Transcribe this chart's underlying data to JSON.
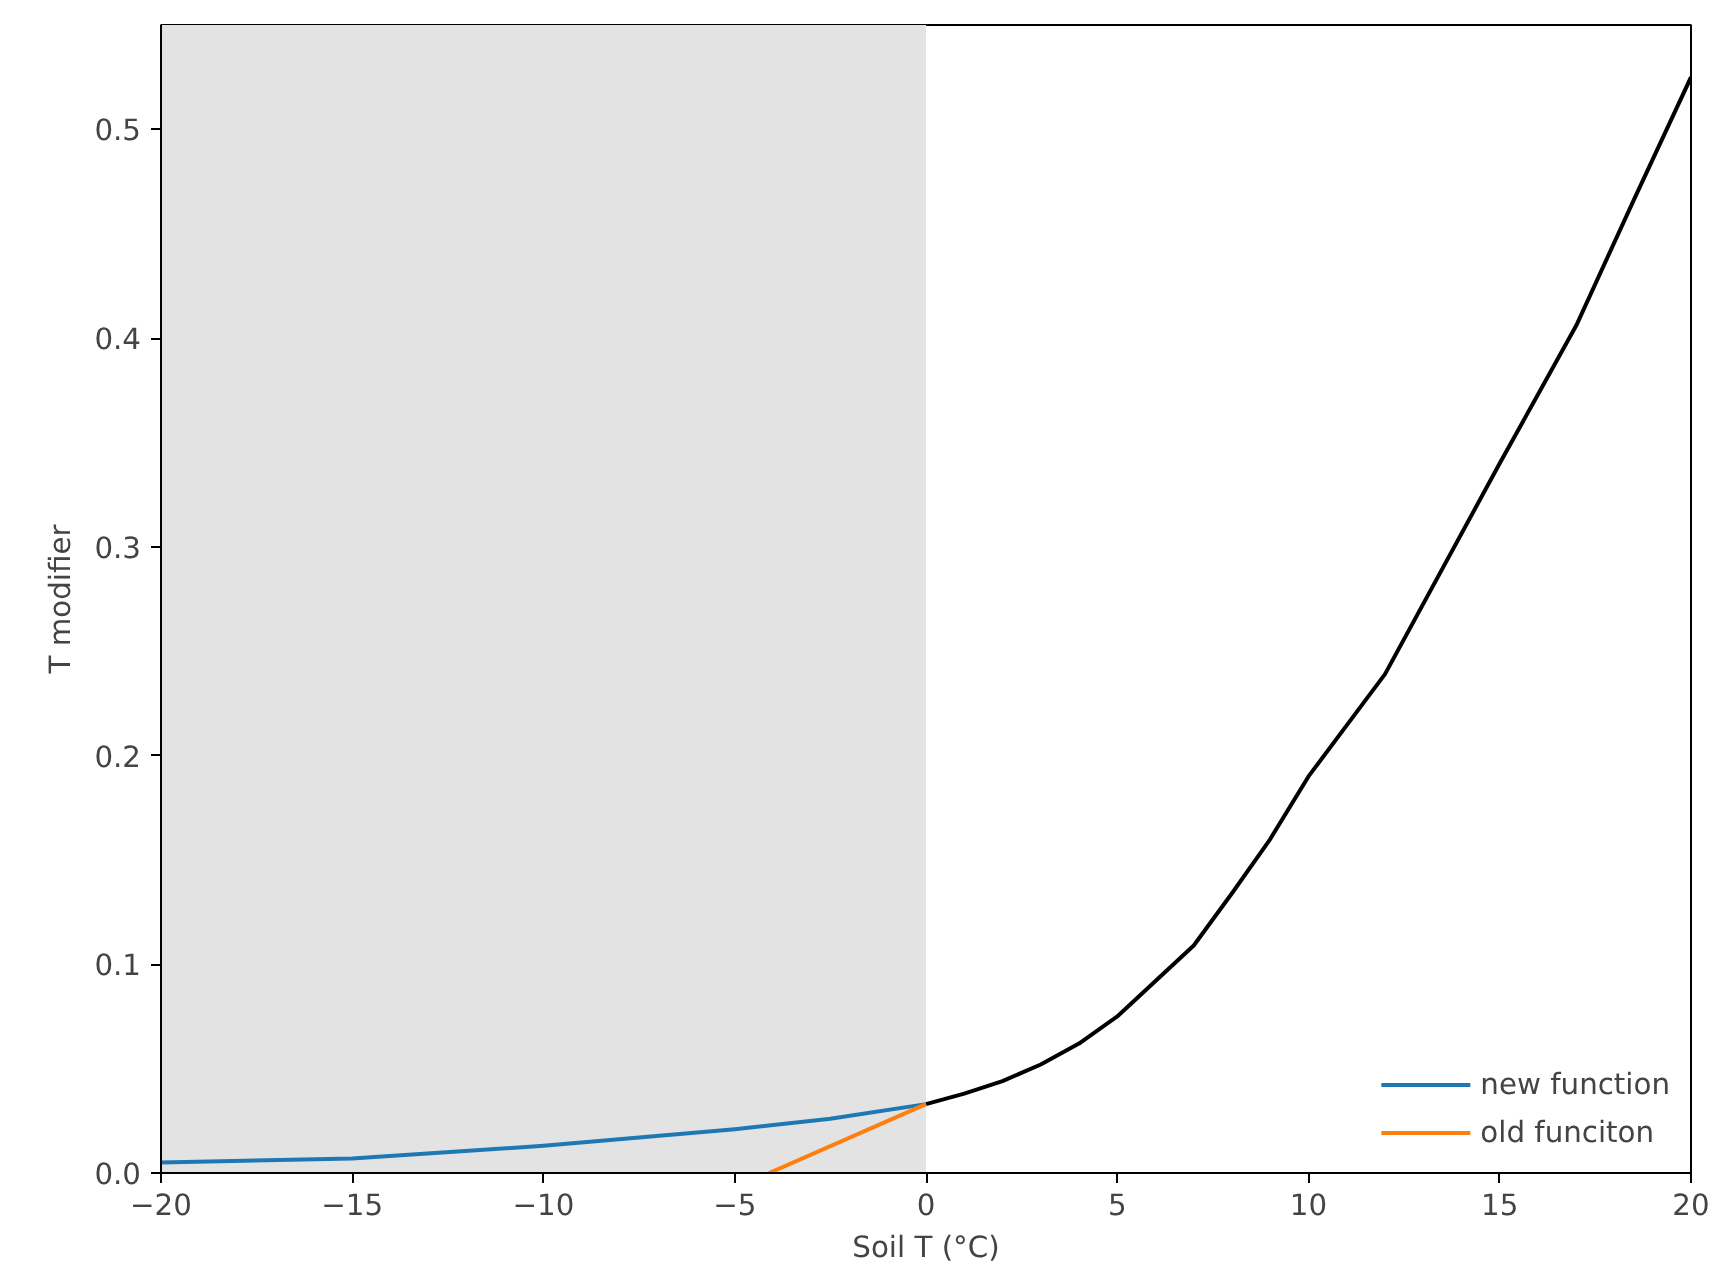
{
  "chart_data": {
    "type": "line",
    "xlabel": "Soil T (°C)",
    "ylabel": "T modifier",
    "xlim": [
      -20,
      20
    ],
    "ylim": [
      0,
      0.55
    ],
    "xticks": [
      {
        "value": -20,
        "label": "−20"
      },
      {
        "value": -15,
        "label": "−15"
      },
      {
        "value": -10,
        "label": "−10"
      },
      {
        "value": -5,
        "label": "−5"
      },
      0,
      5,
      10,
      15,
      20
    ],
    "yticks": [
      {
        "value": 0,
        "label": "0.0"
      },
      0.1,
      0.2,
      0.3,
      0.4,
      0.5
    ],
    "legend": "bottom right",
    "bands": [
      {
        "axis": "x",
        "from": -20,
        "to": 0,
        "color": "#e3e3e3"
      }
    ],
    "series": [
      {
        "color": "#000000",
        "x": [
          0,
          1,
          2,
          3,
          4,
          5,
          6,
          7,
          8,
          9,
          10,
          12,
          15,
          17,
          18.5,
          20
        ],
        "values": [
          0.033,
          0.038,
          0.044,
          0.052,
          0.062,
          0.075,
          0.092,
          0.109,
          0.134,
          0.16,
          0.19,
          0.239,
          0.34,
          0.406,
          0.466,
          0.525
        ]
      },
      {
        "name": "new function",
        "color": "#1f77b4",
        "x": [
          -20,
          -15,
          -10,
          -5,
          -2.5,
          0
        ],
        "values": [
          0.005,
          0.007,
          0.013,
          0.021,
          0.026,
          0.033
        ]
      },
      {
        "name": "old funciton",
        "color": "#ff7f0e",
        "x": [
          -4.1,
          0
        ],
        "values": [
          0,
          0.033
        ]
      }
    ]
  }
}
